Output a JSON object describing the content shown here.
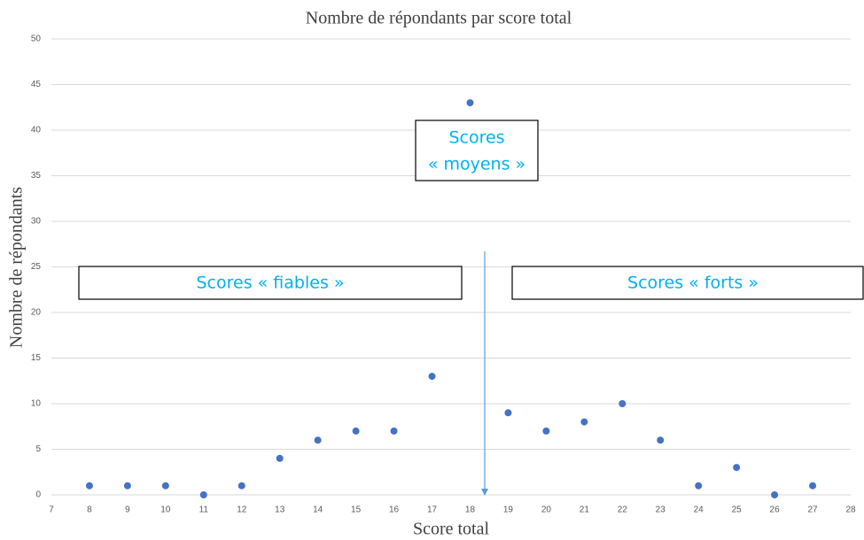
{
  "chart_data": {
    "type": "scatter",
    "title": "Nombre de répondants par score total",
    "x_label": "Score total",
    "y_label": "Nombre de répondants",
    "x": [
      8,
      9,
      10,
      11,
      12,
      13,
      14,
      15,
      16,
      17,
      18,
      19,
      20,
      21,
      22,
      23,
      24,
      25,
      26,
      27
    ],
    "values": [
      1,
      1,
      1,
      0,
      1,
      4,
      6,
      7,
      7,
      13,
      43,
      9,
      7,
      8,
      10,
      6,
      1,
      3,
      0,
      1
    ],
    "color": "#4472c4",
    "xlim": [
      7,
      28
    ],
    "xticks": [
      7,
      8,
      9,
      10,
      11,
      12,
      13,
      14,
      15,
      16,
      17,
      18,
      19,
      20,
      21,
      22,
      23,
      24,
      25,
      26,
      27,
      28
    ],
    "ylim": [
      0,
      50
    ],
    "yticks": [
      0,
      5,
      10,
      15,
      20,
      25,
      30,
      35,
      40,
      45,
      50
    ],
    "grid": true,
    "annotations": [
      {
        "lines": [
          "Scores « fiables »"
        ]
      },
      {
        "lines": [
          "Scores",
          "« moyens »"
        ]
      },
      {
        "lines": [
          "Scores « forts »"
        ]
      }
    ]
  }
}
